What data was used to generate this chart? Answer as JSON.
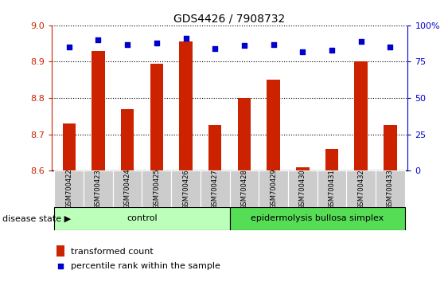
{
  "title": "GDS4426 / 7908732",
  "samples": [
    "GSM700422",
    "GSM700423",
    "GSM700424",
    "GSM700425",
    "GSM700426",
    "GSM700427",
    "GSM700428",
    "GSM700429",
    "GSM700430",
    "GSM700431",
    "GSM700432",
    "GSM700433"
  ],
  "transformed_count": [
    8.73,
    8.93,
    8.77,
    8.895,
    8.955,
    8.725,
    8.8,
    8.85,
    8.61,
    8.66,
    8.9,
    8.725
  ],
  "percentile_rank": [
    85,
    90,
    87,
    88,
    91,
    84,
    86,
    87,
    82,
    83,
    89,
    85
  ],
  "ylim": [
    8.6,
    9.0
  ],
  "yticks": [
    8.6,
    8.7,
    8.8,
    8.9,
    9.0
  ],
  "right_yticks": [
    0,
    25,
    50,
    75,
    100
  ],
  "bar_color": "#cc2200",
  "dot_color": "#0000cc",
  "control_count": 6,
  "control_label": "control",
  "disease_label": "epidermolysis bullosa simplex",
  "legend_bar_label": "transformed count",
  "legend_dot_label": "percentile rank within the sample",
  "disease_state_label": "disease state",
  "control_bg": "#bbffbb",
  "disease_bg": "#55dd55",
  "xticklabel_bg": "#cccccc",
  "bar_base": 8.6,
  "dot_size": 22,
  "bar_width": 0.45
}
